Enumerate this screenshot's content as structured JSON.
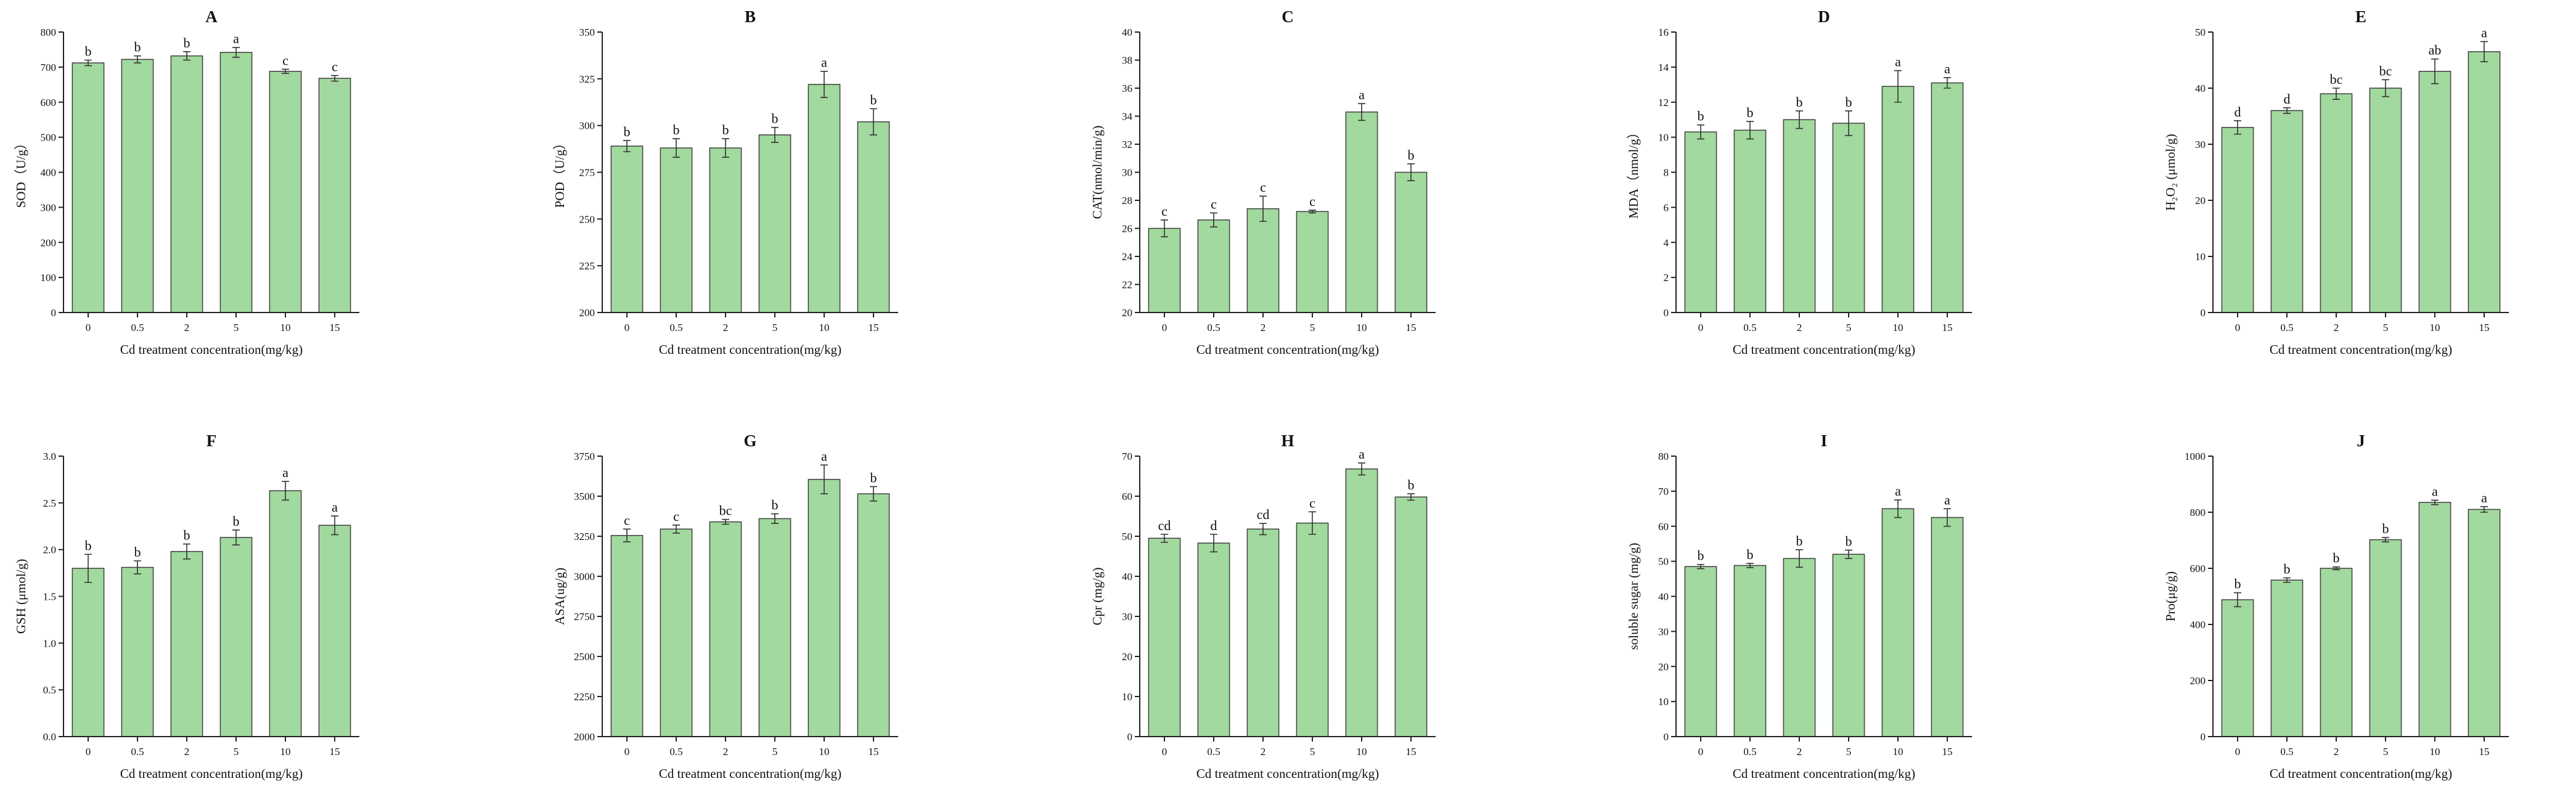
{
  "colors": {
    "bar_fill": "#a2d99e",
    "bar_stroke": "#3f3f3f",
    "axis": "#222222",
    "text": "#111111",
    "background": "#ffffff"
  },
  "chart_data": [
    {
      "id": "A",
      "type": "bar",
      "title": "A",
      "ylabel": "SOD（U/g）",
      "xlabel": "Cd treatment concentration(mg/kg)",
      "categories": [
        "0",
        "0.5",
        "2",
        "5",
        "10",
        "15"
      ],
      "values": [
        712,
        722,
        732,
        742,
        688,
        668
      ],
      "errors": [
        8,
        10,
        12,
        14,
        6,
        8
      ],
      "letters": [
        "b",
        "b",
        "b",
        "a",
        "c",
        "c"
      ],
      "ylim": [
        0,
        800
      ],
      "yticks": [
        "0",
        "100",
        "200",
        "300",
        "400",
        "500",
        "600",
        "700",
        "800"
      ]
    },
    {
      "id": "B",
      "type": "bar",
      "title": "B",
      "ylabel": "POD（U/g）",
      "xlabel": "Cd treatment concentration(mg/kg)",
      "categories": [
        "0",
        "0.5",
        "2",
        "5",
        "10",
        "15"
      ],
      "values": [
        289,
        288,
        288,
        295,
        322,
        302
      ],
      "errors": [
        3,
        5,
        5,
        4,
        7,
        7
      ],
      "letters": [
        "b",
        "b",
        "b",
        "b",
        "a",
        "b"
      ],
      "ylim": [
        200,
        350
      ],
      "yticks": [
        "200",
        "225",
        "250",
        "275",
        "300",
        "325",
        "350"
      ]
    },
    {
      "id": "C",
      "type": "bar",
      "title": "C",
      "ylabel": "CAT(nmol/min/g)",
      "xlabel": "Cd treatment concentration(mg/kg)",
      "categories": [
        "0",
        "0.5",
        "2",
        "5",
        "10",
        "15"
      ],
      "values": [
        26.0,
        26.6,
        27.4,
        27.2,
        34.3,
        30.0
      ],
      "errors": [
        0.6,
        0.5,
        0.9,
        0.1,
        0.6,
        0.6
      ],
      "letters": [
        "c",
        "c",
        "c",
        "c",
        "a",
        "b"
      ],
      "ylim": [
        20,
        40
      ],
      "yticks": [
        "20",
        "22",
        "24",
        "26",
        "28",
        "30",
        "32",
        "34",
        "36",
        "38",
        "40"
      ]
    },
    {
      "id": "D",
      "type": "bar",
      "title": "D",
      "ylabel": "MDA（nmol/g）",
      "xlabel": "Cd treatment concentration(mg/kg)",
      "categories": [
        "0",
        "0.5",
        "2",
        "5",
        "10",
        "15"
      ],
      "values": [
        10.3,
        10.4,
        11.0,
        10.8,
        12.9,
        13.1
      ],
      "errors": [
        0.4,
        0.5,
        0.5,
        0.7,
        0.9,
        0.3
      ],
      "letters": [
        "b",
        "b",
        "b",
        "b",
        "a",
        "a"
      ],
      "ylim": [
        0,
        16
      ],
      "yticks": [
        "0",
        "2",
        "4",
        "6",
        "8",
        "10",
        "12",
        "14",
        "16"
      ]
    },
    {
      "id": "E",
      "type": "bar",
      "title": "E",
      "ylabel": "H₂O₂ (μmol/g)",
      "xlabel": "Cd treatment concentration(mg/kg)",
      "categories": [
        "0",
        "0.5",
        "2",
        "5",
        "10",
        "15"
      ],
      "values": [
        33.0,
        36.0,
        39.0,
        40.0,
        43.0,
        46.5
      ],
      "errors": [
        1.2,
        0.5,
        1.0,
        1.5,
        2.2,
        1.8
      ],
      "letters": [
        "d",
        "d",
        "bc",
        "bc",
        "ab",
        "a"
      ],
      "ylim": [
        0,
        50
      ],
      "yticks": [
        "0",
        "10",
        "20",
        "30",
        "40",
        "50"
      ]
    },
    {
      "id": "F",
      "type": "bar",
      "title": "F",
      "ylabel": "GSH (μmol/g)",
      "xlabel": "Cd treatment concentration(mg/kg)",
      "categories": [
        "0",
        "0.5",
        "2",
        "5",
        "10",
        "15"
      ],
      "values": [
        1.8,
        1.81,
        1.98,
        2.13,
        2.63,
        2.26
      ],
      "errors": [
        0.15,
        0.07,
        0.08,
        0.08,
        0.1,
        0.1
      ],
      "letters": [
        "b",
        "b",
        "b",
        "b",
        "a",
        "a"
      ],
      "ylim": [
        0,
        3.0
      ],
      "yticks": [
        "0.0",
        "0.5",
        "1.0",
        "1.5",
        "2.0",
        "2.5",
        "3.0"
      ]
    },
    {
      "id": "G",
      "type": "bar",
      "title": "G",
      "ylabel": "ASA(ug/g)",
      "xlabel": "Cd treatment concentration(mg/kg)",
      "categories": [
        "0",
        "0.5",
        "2",
        "5",
        "10",
        "15"
      ],
      "values": [
        3255,
        3295,
        3340,
        3360,
        3605,
        3515
      ],
      "errors": [
        40,
        25,
        15,
        30,
        90,
        45
      ],
      "letters": [
        "c",
        "c",
        "bc",
        "b",
        "a",
        "b"
      ],
      "ylim": [
        2000,
        3750
      ],
      "yticks": [
        "2000",
        "2250",
        "2500",
        "2750",
        "3000",
        "3250",
        "3500",
        "3750"
      ]
    },
    {
      "id": "H",
      "type": "bar",
      "title": "H",
      "ylabel": "Cpr (mg/g)",
      "xlabel": "Cd treatment concentration(mg/kg)",
      "categories": [
        "0",
        "0.5",
        "2",
        "5",
        "10",
        "15"
      ],
      "values": [
        49.5,
        48.3,
        51.8,
        53.3,
        66.8,
        59.8
      ],
      "errors": [
        1.0,
        2.2,
        1.4,
        2.8,
        1.5,
        0.8
      ],
      "letters": [
        "cd",
        "d",
        "cd",
        "c",
        "a",
        "b"
      ],
      "ylim": [
        0,
        70
      ],
      "yticks": [
        "0",
        "10",
        "20",
        "30",
        "40",
        "50",
        "60",
        "70"
      ]
    },
    {
      "id": "I",
      "type": "bar",
      "title": "I",
      "ylabel": "soluble sugar (mg/g)",
      "xlabel": "Cd treatment concentration(mg/kg)",
      "categories": [
        "0",
        "0.5",
        "2",
        "5",
        "10",
        "15"
      ],
      "values": [
        48.5,
        48.8,
        50.8,
        52.0,
        65.0,
        62.5
      ],
      "errors": [
        0.6,
        0.6,
        2.5,
        1.2,
        2.5,
        2.5
      ],
      "letters": [
        "b",
        "b",
        "b",
        "b",
        "a",
        "a"
      ],
      "ylim": [
        0,
        80
      ],
      "yticks": [
        "0",
        "10",
        "20",
        "30",
        "40",
        "50",
        "60",
        "70",
        "80"
      ]
    },
    {
      "id": "J",
      "type": "bar",
      "title": "J",
      "ylabel": "Pro(μg/g)",
      "xlabel": "Cd treatment concentration(mg/kg)",
      "categories": [
        "0",
        "0.5",
        "2",
        "5",
        "10",
        "15"
      ],
      "values": [
        488,
        558,
        600,
        702,
        835,
        810
      ],
      "errors": [
        25,
        8,
        5,
        8,
        8,
        10
      ],
      "letters": [
        "b",
        "b",
        "b",
        "b",
        "a",
        "a"
      ],
      "ylim": [
        0,
        1000
      ],
      "yticks": [
        "0",
        "200",
        "400",
        "600",
        "800",
        "1000"
      ]
    }
  ]
}
